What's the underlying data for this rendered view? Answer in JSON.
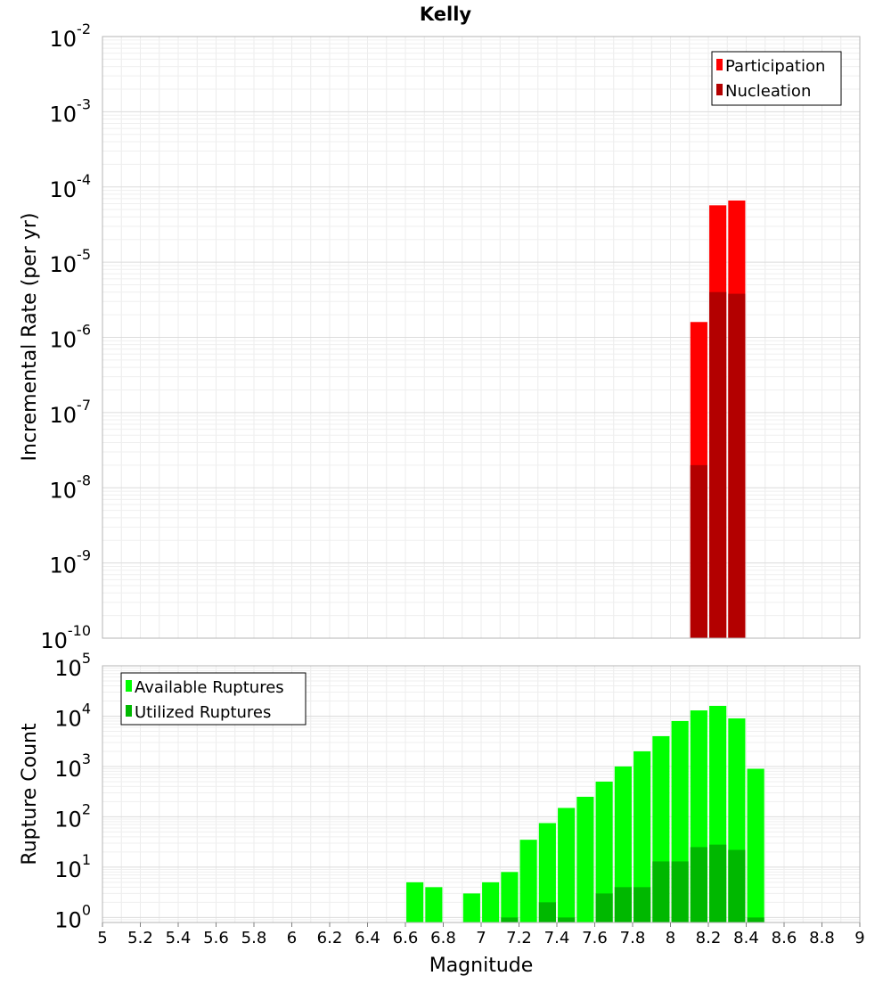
{
  "title": "Kelly",
  "chart_data": [
    {
      "id": "rates",
      "type": "bar",
      "ylabel": "Incremental Rate (per yr)",
      "yscale": "log",
      "ylim_exp": [
        -10,
        -2
      ],
      "y_tick_exps": [
        -10,
        -9,
        -8,
        -7,
        -6,
        -5,
        -4,
        -3,
        -2
      ],
      "y_tick_base": "10",
      "bar_width": 0.09,
      "legend": {
        "position": "top-right",
        "entries": [
          "Participation",
          "Nucleation"
        ]
      },
      "series": [
        {
          "name": "Participation",
          "color": "#ff0000",
          "x": [
            8.15,
            8.25,
            8.35
          ],
          "values": [
            1.6e-06,
            5.7e-05,
            6.6e-05
          ]
        },
        {
          "name": "Nucleation",
          "color": "#b30000",
          "x": [
            8.15,
            8.25,
            8.35
          ],
          "values": [
            2e-08,
            4e-06,
            3.8e-06
          ]
        }
      ]
    },
    {
      "id": "counts",
      "type": "bar",
      "xlabel": "Magnitude",
      "ylabel": "Rupture Count",
      "yscale": "log",
      "ylim_exp": [
        -0.1,
        5
      ],
      "y_tick_exps": [
        0,
        1,
        2,
        3,
        4,
        5
      ],
      "y_tick_base": "10",
      "bar_width": 0.09,
      "legend": {
        "position": "top-left",
        "entries": [
          "Available Ruptures",
          "Utilized Ruptures"
        ]
      },
      "series": [
        {
          "name": "Available Ruptures",
          "color": "#00ff00",
          "x": [
            6.65,
            6.75,
            6.95,
            7.05,
            7.15,
            7.25,
            7.35,
            7.45,
            7.55,
            7.65,
            7.75,
            7.85,
            7.95,
            8.05,
            8.15,
            8.25,
            8.35,
            8.45
          ],
          "values": [
            5,
            4,
            3,
            5,
            8,
            35,
            75,
            150,
            250,
            500,
            1000,
            2000,
            4000,
            8000,
            13000,
            16000,
            9000,
            900
          ]
        },
        {
          "name": "Utilized Ruptures",
          "color": "#00b800",
          "x": [
            7.15,
            7.35,
            7.45,
            7.65,
            7.75,
            7.85,
            7.95,
            8.05,
            8.15,
            8.25,
            8.35,
            8.45
          ],
          "values": [
            1,
            2,
            1,
            3,
            4,
            4,
            13,
            13,
            25,
            28,
            22,
            1
          ]
        }
      ]
    }
  ],
  "x_axis": {
    "min": 5,
    "max": 9,
    "ticks": [
      "5",
      "5.2",
      "5.4",
      "5.6",
      "5.8",
      "6",
      "6.2",
      "6.4",
      "6.6",
      "6.8",
      "7",
      "7.2",
      "7.4",
      "7.6",
      "7.8",
      "8",
      "8.2",
      "8.4",
      "8.6",
      "8.8",
      "9"
    ]
  }
}
